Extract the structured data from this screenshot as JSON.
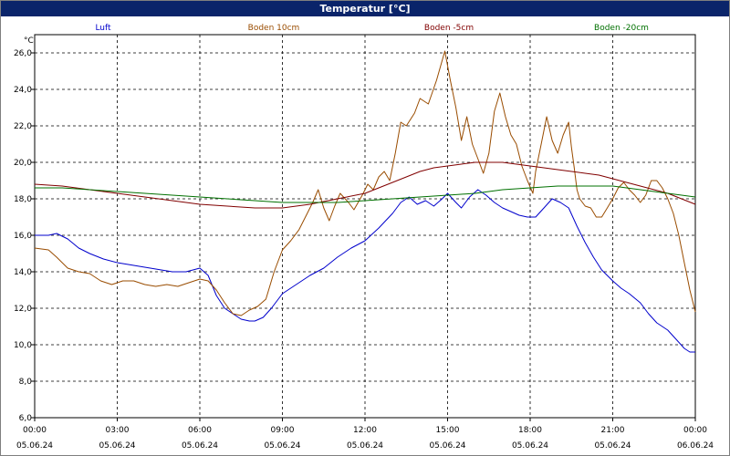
{
  "window": {
    "title": "Temperatur [°C]"
  },
  "chart_data": {
    "type": "line",
    "title": "Temperatur [°C]",
    "ylabel": "°C",
    "xlabel": "",
    "ylim": [
      6,
      27
    ],
    "xlim_hours": [
      0,
      24
    ],
    "grid": true,
    "legend_position": "top",
    "y_ticks": [
      "6,0",
      "8,0",
      "10,0",
      "12,0",
      "14,0",
      "16,0",
      "18,0",
      "20,0",
      "22,0",
      "24,0",
      "26,0"
    ],
    "x_ticks": [
      {
        "time": "00:00",
        "date": "05.06.24"
      },
      {
        "time": "03:00",
        "date": "05.06.24"
      },
      {
        "time": "06:00",
        "date": "05.06.24"
      },
      {
        "time": "09:00",
        "date": "05.06.24"
      },
      {
        "time": "12:00",
        "date": "05.06.24"
      },
      {
        "time": "15:00",
        "date": "05.06.24"
      },
      {
        "time": "18:00",
        "date": "05.06.24"
      },
      {
        "time": "21:00",
        "date": "05.06.24"
      },
      {
        "time": "00:00",
        "date": "06.06.24"
      }
    ],
    "series": [
      {
        "name": "Luft",
        "color": "#0000cc",
        "points": [
          [
            0,
            16.0
          ],
          [
            0.5,
            16.0
          ],
          [
            0.8,
            16.1
          ],
          [
            1.2,
            15.8
          ],
          [
            1.6,
            15.3
          ],
          [
            2.0,
            15.0
          ],
          [
            2.5,
            14.7
          ],
          [
            3.0,
            14.5
          ],
          [
            3.4,
            14.4
          ],
          [
            3.8,
            14.3
          ],
          [
            4.2,
            14.2
          ],
          [
            4.6,
            14.1
          ],
          [
            5.0,
            14.0
          ],
          [
            5.5,
            14.0
          ],
          [
            6.0,
            14.2
          ],
          [
            6.3,
            13.8
          ],
          [
            6.6,
            12.7
          ],
          [
            6.9,
            12.0
          ],
          [
            7.2,
            11.7
          ],
          [
            7.5,
            11.4
          ],
          [
            7.8,
            11.3
          ],
          [
            8.0,
            11.3
          ],
          [
            8.3,
            11.5
          ],
          [
            8.6,
            12.0
          ],
          [
            9.0,
            12.8
          ],
          [
            9.5,
            13.3
          ],
          [
            10.0,
            13.8
          ],
          [
            10.5,
            14.2
          ],
          [
            11.0,
            14.8
          ],
          [
            11.5,
            15.3
          ],
          [
            12.0,
            15.7
          ],
          [
            12.5,
            16.4
          ],
          [
            13.0,
            17.2
          ],
          [
            13.3,
            17.8
          ],
          [
            13.6,
            18.1
          ],
          [
            13.9,
            17.7
          ],
          [
            14.2,
            17.9
          ],
          [
            14.5,
            17.6
          ],
          [
            14.8,
            18.0
          ],
          [
            15.0,
            18.3
          ],
          [
            15.3,
            17.8
          ],
          [
            15.5,
            17.5
          ],
          [
            15.8,
            18.1
          ],
          [
            16.1,
            18.5
          ],
          [
            16.4,
            18.2
          ],
          [
            16.7,
            17.8
          ],
          [
            17.0,
            17.5
          ],
          [
            17.3,
            17.3
          ],
          [
            17.6,
            17.1
          ],
          [
            17.9,
            17.0
          ],
          [
            18.2,
            17.0
          ],
          [
            18.5,
            17.5
          ],
          [
            18.8,
            18.0
          ],
          [
            19.1,
            17.8
          ],
          [
            19.4,
            17.5
          ],
          [
            19.7,
            16.5
          ],
          [
            20.0,
            15.6
          ],
          [
            20.3,
            14.8
          ],
          [
            20.6,
            14.1
          ],
          [
            21.0,
            13.5
          ],
          [
            21.3,
            13.1
          ],
          [
            21.6,
            12.8
          ],
          [
            22.0,
            12.3
          ],
          [
            22.3,
            11.7
          ],
          [
            22.6,
            11.2
          ],
          [
            23.0,
            10.8
          ],
          [
            23.3,
            10.3
          ],
          [
            23.6,
            9.8
          ],
          [
            23.8,
            9.6
          ],
          [
            24.0,
            9.6
          ]
        ]
      },
      {
        "name": "Boden 10cm",
        "color": "#994c00",
        "points": [
          [
            0,
            15.3
          ],
          [
            0.5,
            15.2
          ],
          [
            0.8,
            14.8
          ],
          [
            1.2,
            14.2
          ],
          [
            1.6,
            14.0
          ],
          [
            2.0,
            13.9
          ],
          [
            2.4,
            13.5
          ],
          [
            2.8,
            13.3
          ],
          [
            3.2,
            13.5
          ],
          [
            3.6,
            13.5
          ],
          [
            4.0,
            13.3
          ],
          [
            4.4,
            13.2
          ],
          [
            4.8,
            13.3
          ],
          [
            5.2,
            13.2
          ],
          [
            5.6,
            13.4
          ],
          [
            6.0,
            13.6
          ],
          [
            6.3,
            13.5
          ],
          [
            6.6,
            13.0
          ],
          [
            6.9,
            12.3
          ],
          [
            7.2,
            11.7
          ],
          [
            7.5,
            11.6
          ],
          [
            7.8,
            11.9
          ],
          [
            8.1,
            12.1
          ],
          [
            8.4,
            12.5
          ],
          [
            8.7,
            14.0
          ],
          [
            9.0,
            15.2
          ],
          [
            9.3,
            15.7
          ],
          [
            9.6,
            16.3
          ],
          [
            9.9,
            17.2
          ],
          [
            10.1,
            17.8
          ],
          [
            10.3,
            18.5
          ],
          [
            10.5,
            17.5
          ],
          [
            10.7,
            16.8
          ],
          [
            10.9,
            17.6
          ],
          [
            11.1,
            18.3
          ],
          [
            11.4,
            17.8
          ],
          [
            11.6,
            17.4
          ],
          [
            11.9,
            18.2
          ],
          [
            12.1,
            18.8
          ],
          [
            12.3,
            18.5
          ],
          [
            12.5,
            19.2
          ],
          [
            12.7,
            19.5
          ],
          [
            12.9,
            19.0
          ],
          [
            13.1,
            20.5
          ],
          [
            13.3,
            22.2
          ],
          [
            13.5,
            22.0
          ],
          [
            13.8,
            22.7
          ],
          [
            14.0,
            23.5
          ],
          [
            14.3,
            23.2
          ],
          [
            14.6,
            24.5
          ],
          [
            14.9,
            26.1
          ],
          [
            15.1,
            24.5
          ],
          [
            15.3,
            23.0
          ],
          [
            15.5,
            21.2
          ],
          [
            15.7,
            22.5
          ],
          [
            15.9,
            21.0
          ],
          [
            16.1,
            20.2
          ],
          [
            16.3,
            19.4
          ],
          [
            16.5,
            20.5
          ],
          [
            16.7,
            22.8
          ],
          [
            16.9,
            23.8
          ],
          [
            17.1,
            22.5
          ],
          [
            17.3,
            21.5
          ],
          [
            17.5,
            21.0
          ],
          [
            17.7,
            19.8
          ],
          [
            17.9,
            19.0
          ],
          [
            18.1,
            18.3
          ],
          [
            18.2,
            19.5
          ],
          [
            18.4,
            21.0
          ],
          [
            18.6,
            22.5
          ],
          [
            18.8,
            21.2
          ],
          [
            19.0,
            20.5
          ],
          [
            19.2,
            21.5
          ],
          [
            19.4,
            22.2
          ],
          [
            19.5,
            20.8
          ],
          [
            19.6,
            19.7
          ],
          [
            19.7,
            18.5
          ],
          [
            19.8,
            18.0
          ],
          [
            20.0,
            17.6
          ],
          [
            20.2,
            17.5
          ],
          [
            20.4,
            17.0
          ],
          [
            20.6,
            17.0
          ],
          [
            20.8,
            17.5
          ],
          [
            21.0,
            18.0
          ],
          [
            21.2,
            18.6
          ],
          [
            21.4,
            18.9
          ],
          [
            21.6,
            18.5
          ],
          [
            21.8,
            18.2
          ],
          [
            22.0,
            17.8
          ],
          [
            22.2,
            18.2
          ],
          [
            22.4,
            19.0
          ],
          [
            22.6,
            19.0
          ],
          [
            22.8,
            18.6
          ],
          [
            23.0,
            18.0
          ],
          [
            23.2,
            17.2
          ],
          [
            23.4,
            16.0
          ],
          [
            23.6,
            14.5
          ],
          [
            23.8,
            13.0
          ],
          [
            24.0,
            11.8
          ]
        ]
      },
      {
        "name": "Boden -5cm",
        "color": "#800000",
        "points": [
          [
            0,
            18.8
          ],
          [
            1.0,
            18.7
          ],
          [
            2.0,
            18.5
          ],
          [
            3.0,
            18.3
          ],
          [
            4.0,
            18.1
          ],
          [
            5.0,
            17.9
          ],
          [
            6.0,
            17.7
          ],
          [
            7.0,
            17.6
          ],
          [
            8.0,
            17.5
          ],
          [
            9.0,
            17.5
          ],
          [
            10.0,
            17.7
          ],
          [
            11.0,
            18.0
          ],
          [
            12.0,
            18.3
          ],
          [
            12.5,
            18.6
          ],
          [
            13.0,
            18.9
          ],
          [
            13.5,
            19.2
          ],
          [
            14.0,
            19.5
          ],
          [
            14.5,
            19.7
          ],
          [
            15.0,
            19.8
          ],
          [
            15.5,
            19.9
          ],
          [
            16.0,
            20.0
          ],
          [
            16.5,
            20.0
          ],
          [
            17.0,
            20.0
          ],
          [
            17.5,
            19.9
          ],
          [
            18.0,
            19.8
          ],
          [
            18.5,
            19.7
          ],
          [
            19.0,
            19.6
          ],
          [
            19.5,
            19.5
          ],
          [
            20.0,
            19.4
          ],
          [
            20.5,
            19.3
          ],
          [
            21.0,
            19.1
          ],
          [
            21.5,
            18.9
          ],
          [
            22.0,
            18.7
          ],
          [
            22.5,
            18.5
          ],
          [
            23.0,
            18.3
          ],
          [
            23.5,
            18.0
          ],
          [
            24.0,
            17.7
          ]
        ]
      },
      {
        "name": "Boden -20cm",
        "color": "#007000",
        "points": [
          [
            0,
            18.6
          ],
          [
            1.0,
            18.6
          ],
          [
            2.0,
            18.5
          ],
          [
            3.0,
            18.4
          ],
          [
            4.0,
            18.3
          ],
          [
            5.0,
            18.2
          ],
          [
            6.0,
            18.1
          ],
          [
            7.0,
            18.0
          ],
          [
            8.0,
            17.9
          ],
          [
            9.0,
            17.8
          ],
          [
            10.0,
            17.8
          ],
          [
            11.0,
            17.8
          ],
          [
            12.0,
            17.9
          ],
          [
            13.0,
            18.0
          ],
          [
            14.0,
            18.1
          ],
          [
            15.0,
            18.2
          ],
          [
            16.0,
            18.3
          ],
          [
            17.0,
            18.5
          ],
          [
            18.0,
            18.6
          ],
          [
            19.0,
            18.7
          ],
          [
            20.0,
            18.7
          ],
          [
            21.0,
            18.7
          ],
          [
            22.0,
            18.5
          ],
          [
            23.0,
            18.3
          ],
          [
            24.0,
            18.1
          ]
        ]
      }
    ]
  }
}
